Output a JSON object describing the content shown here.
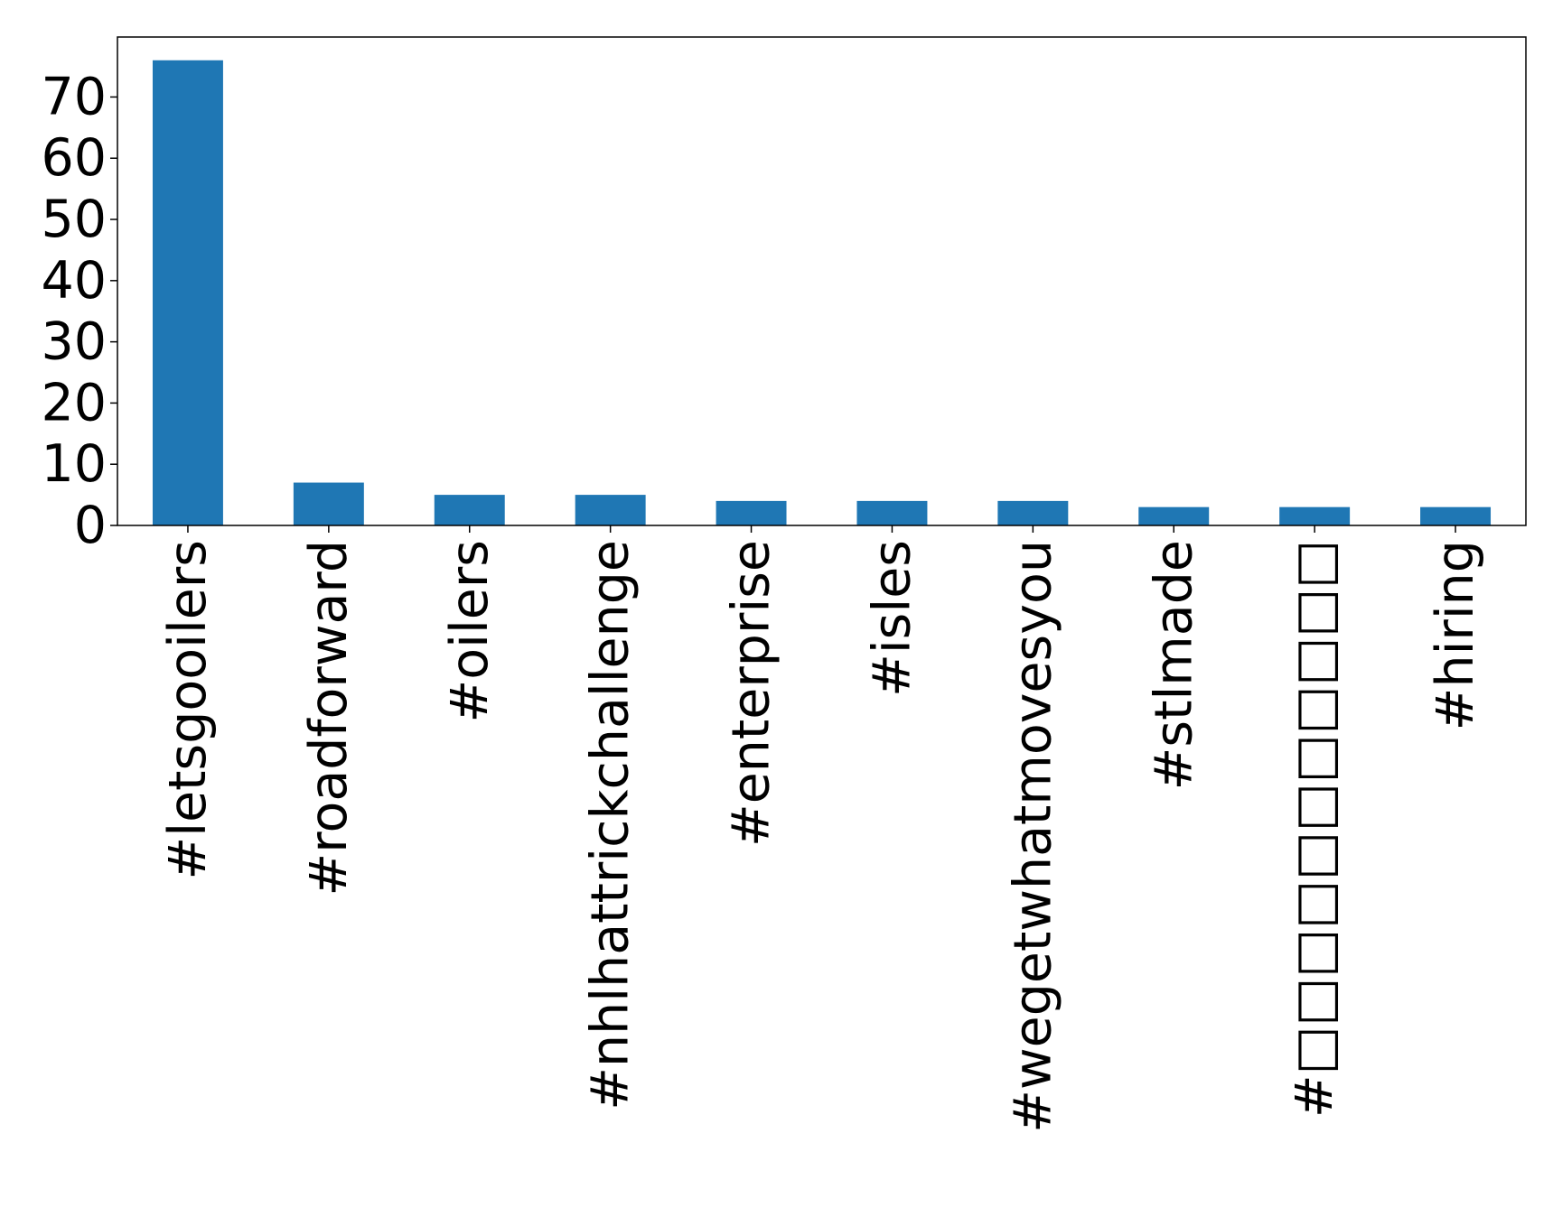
{
  "chart_data": {
    "type": "bar",
    "title": "",
    "xlabel": "",
    "ylabel": "",
    "categories": [
      "#letsgooilers",
      "#roadforward",
      "#oilers",
      "#nhlhattrickchallenge",
      "#enterprise",
      "#isles",
      "#wegetwhatmovesyou",
      "#stlmade",
      "#□□□□□□□□□□□",
      "#hiring"
    ],
    "values": [
      76,
      7,
      5,
      5,
      4,
      4,
      4,
      3,
      3,
      3
    ],
    "ylim": [
      0,
      79.8
    ],
    "yticks": [
      0,
      10,
      20,
      30,
      40,
      50,
      60,
      70
    ],
    "ytick_labels": [
      "0",
      "10",
      "20",
      "30",
      "40",
      "50",
      "60",
      "70"
    ],
    "bar_color": "#1f77b4",
    "grid": false,
    "legend": "none"
  }
}
